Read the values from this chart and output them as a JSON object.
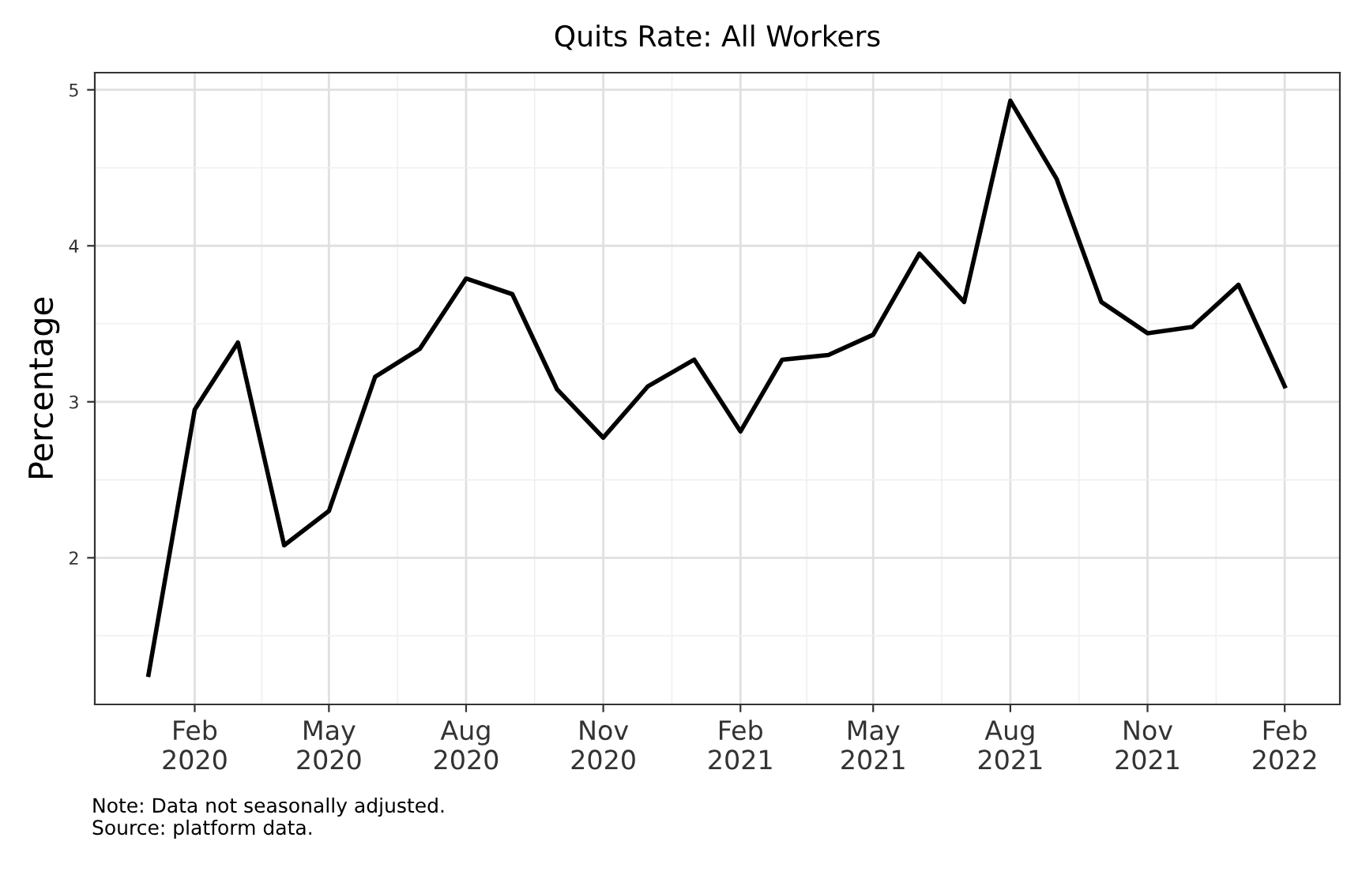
{
  "chart_data": {
    "type": "line",
    "title": "Quits Rate: All Workers",
    "ylabel": "Percentage",
    "annotations": [
      "Note: Data not seasonally adjusted.",
      "Source: platform data."
    ],
    "x": [
      "2020-01",
      "2020-02",
      "2020-03",
      "2020-04",
      "2020-05",
      "2020-06",
      "2020-07",
      "2020-08",
      "2020-09",
      "2020-10",
      "2020-11",
      "2020-12",
      "2021-01",
      "2021-02",
      "2021-03",
      "2021-04",
      "2021-05",
      "2021-06",
      "2021-07",
      "2021-08",
      "2021-09",
      "2021-10",
      "2021-11",
      "2021-12",
      "2022-01",
      "2022-02"
    ],
    "series": [
      {
        "color": "#000000",
        "values": [
          1.25,
          2.95,
          3.38,
          2.08,
          2.3,
          3.16,
          3.34,
          3.79,
          3.69,
          3.08,
          2.77,
          3.1,
          3.27,
          2.81,
          3.27,
          3.3,
          3.43,
          3.95,
          3.64,
          4.93,
          4.43,
          3.64,
          3.44,
          3.48,
          3.75,
          3.1
        ]
      }
    ],
    "xlim": [
      "2019-11-26",
      "2022-03-10"
    ],
    "xticks": [
      {
        "value": "2020-02",
        "label": "Feb\n2020"
      },
      {
        "value": "2020-05",
        "label": "May\n2020"
      },
      {
        "value": "2020-08",
        "label": "Aug\n2020"
      },
      {
        "value": "2020-11",
        "label": "Nov\n2020"
      },
      {
        "value": "2021-02",
        "label": "Feb\n2021"
      },
      {
        "value": "2021-05",
        "label": "May\n2021"
      },
      {
        "value": "2021-08",
        "label": "Aug\n2021"
      },
      {
        "value": "2021-11",
        "label": "Nov\n2021"
      },
      {
        "value": "2022-02",
        "label": "Feb\n2022"
      }
    ],
    "ylim": [
      1.06,
      5.11
    ],
    "yticks": [
      2,
      3,
      4,
      5
    ],
    "grid": true,
    "legend": false,
    "marker": "none",
    "line_style": "solid"
  }
}
